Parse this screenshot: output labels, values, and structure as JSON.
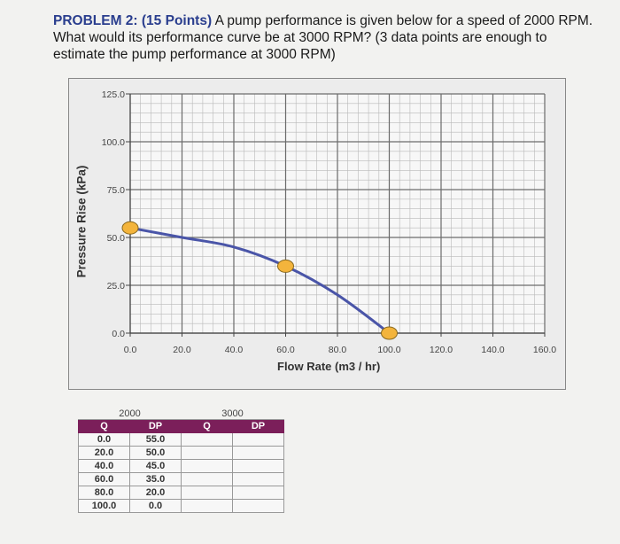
{
  "problem": {
    "heading": "PROBLEM 2: (15 Points)",
    "text": " A pump performance is given below for a speed of 2000 RPM. What would its performance curve be at 3000 RPM? (3 data points are enough to estimate the pump performance at 3000 RPM)"
  },
  "chart_data": {
    "type": "line",
    "title": "",
    "xlabel": "Flow Rate (m3 / hr)",
    "ylabel": "Pressure Rise (kPa)",
    "xlim": [
      0,
      160
    ],
    "ylim": [
      0,
      125
    ],
    "x_ticks": [
      "0.0",
      "20.0",
      "40.0",
      "60.0",
      "80.0",
      "100.0",
      "120.0",
      "140.0",
      "160.0"
    ],
    "y_ticks": [
      "0.0",
      "25.0",
      "50.0",
      "75.0",
      "100.0",
      "125.0"
    ],
    "grid": true,
    "series": [
      {
        "x": [
          0,
          20,
          40,
          60,
          80,
          100
        ],
        "y": [
          55,
          50,
          45,
          35,
          20,
          0
        ],
        "color": "#4a55a8"
      }
    ],
    "markers": {
      "x": [
        0,
        60,
        100
      ],
      "y": [
        55,
        35,
        0
      ],
      "color": "#f3b43c"
    }
  },
  "table": {
    "group_2000": "2000",
    "group_3000": "3000",
    "col_q": "Q",
    "col_dp": "DP",
    "rows": [
      {
        "q": "0.0",
        "dp": "55.0"
      },
      {
        "q": "20.0",
        "dp": "50.0"
      },
      {
        "q": "40.0",
        "dp": "45.0"
      },
      {
        "q": "60.0",
        "dp": "35.0"
      },
      {
        "q": "80.0",
        "dp": "20.0"
      },
      {
        "q": "100.0",
        "dp": "0.0"
      }
    ]
  }
}
